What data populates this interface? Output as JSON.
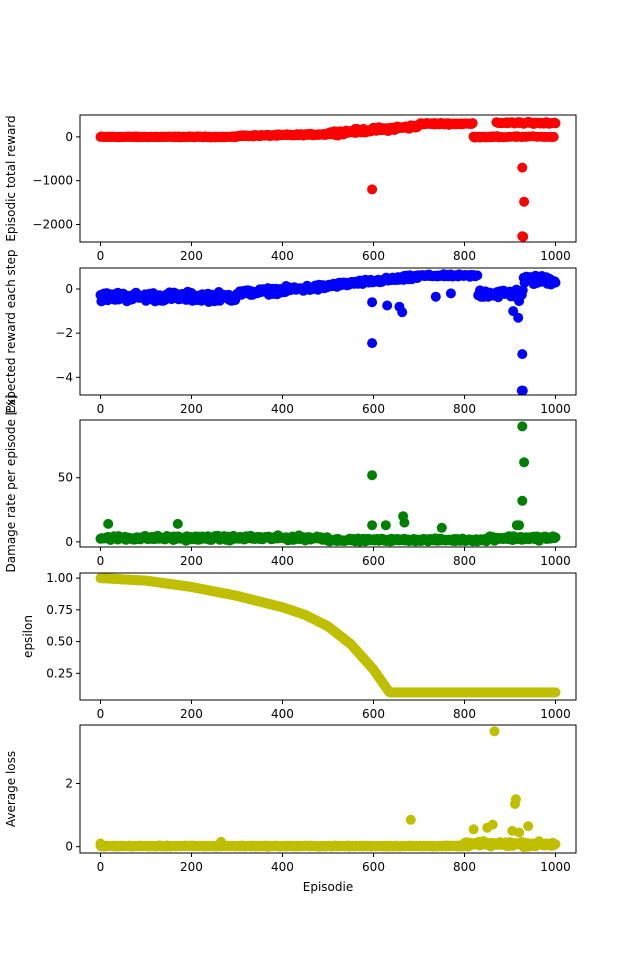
{
  "chart_data": [
    {
      "type": "scatter",
      "ylabel": "Episodic total reward",
      "xlabel": "",
      "color": "#ff0000",
      "xlim": [
        -45,
        1045
      ],
      "ylim": [
        -2400,
        500
      ],
      "xticks": [
        0,
        200,
        400,
        600,
        800,
        1000
      ],
      "yticks": [
        0,
        -1000,
        -2000
      ],
      "outliers": [
        [
          597,
          -1200
        ],
        [
          927,
          -700
        ],
        [
          931,
          -1480
        ],
        [
          927,
          -2270
        ],
        [
          929,
          -2280
        ]
      ]
    },
    {
      "type": "scatter",
      "ylabel": "Expected reward each step",
      "xlabel": "",
      "color": "#0000ff",
      "xlim": [
        -45,
        1045
      ],
      "ylim": [
        -4.8,
        0.95
      ],
      "xticks": [
        0,
        200,
        400,
        600,
        800,
        1000
      ],
      "yticks": [
        0,
        -2,
        -4
      ],
      "outliers": [
        [
          597,
          -2.45
        ],
        [
          927,
          -2.95
        ],
        [
          926,
          -4.6
        ],
        [
          928,
          -4.6
        ],
        [
          597,
          -0.6
        ],
        [
          630,
          -0.75
        ],
        [
          657,
          -0.8
        ],
        [
          663,
          -1.05
        ],
        [
          737,
          -0.35
        ],
        [
          770,
          -0.2
        ],
        [
          907,
          -1.0
        ],
        [
          918,
          -1.3
        ],
        [
          920,
          -0.55
        ]
      ]
    },
    {
      "type": "scatter",
      "ylabel": "Damage rate per episode [%]",
      "xlabel": "",
      "color": "#008000",
      "xlim": [
        -45,
        1045
      ],
      "ylim": [
        -4,
        95
      ],
      "xticks": [
        0,
        200,
        400,
        600,
        800,
        1000
      ],
      "yticks": [
        0,
        50
      ],
      "outliers": [
        [
          927,
          90
        ],
        [
          931,
          62
        ],
        [
          597,
          52
        ],
        [
          927,
          32
        ],
        [
          665,
          20
        ],
        [
          668,
          15
        ],
        [
          597,
          13
        ],
        [
          627,
          13
        ],
        [
          750,
          11
        ],
        [
          915,
          13
        ],
        [
          920,
          13
        ],
        [
          17,
          14
        ],
        [
          170,
          14
        ]
      ]
    },
    {
      "type": "scatter",
      "ylabel": "epsilon",
      "xlabel": "",
      "color": "#bfbf00",
      "xlim": [
        -45,
        1045
      ],
      "ylim": [
        0.04,
        1.04
      ],
      "xticks": [
        0,
        200,
        400,
        600,
        800,
        1000
      ],
      "yticks": [
        0.25,
        0.5,
        0.75,
        1.0
      ],
      "ytick_labels": [
        "0.25",
        "0.50",
        "0.75",
        "1.00"
      ],
      "curve": [
        [
          0,
          1.0
        ],
        [
          100,
          0.98
        ],
        [
          200,
          0.93
        ],
        [
          300,
          0.86
        ],
        [
          400,
          0.77
        ],
        [
          450,
          0.71
        ],
        [
          500,
          0.62
        ],
        [
          550,
          0.48
        ],
        [
          600,
          0.28
        ],
        [
          635,
          0.1
        ],
        [
          1000,
          0.1
        ]
      ],
      "outliers": []
    },
    {
      "type": "scatter",
      "ylabel": "Average loss",
      "xlabel": "Episodie",
      "color": "#bfbf00",
      "xlim": [
        -45,
        1045
      ],
      "ylim": [
        -0.2,
        3.85
      ],
      "xticks": [
        0,
        200,
        400,
        600,
        800,
        1000
      ],
      "yticks": [
        0,
        2
      ],
      "outliers": [
        [
          866,
          3.65
        ],
        [
          913,
          1.5
        ],
        [
          911,
          1.35
        ],
        [
          682,
          0.85
        ],
        [
          862,
          0.7
        ],
        [
          850,
          0.6
        ],
        [
          820,
          0.55
        ],
        [
          940,
          0.65
        ],
        [
          905,
          0.5
        ],
        [
          920,
          0.45
        ],
        [
          265,
          0.15
        ],
        [
          0,
          0.1
        ]
      ]
    }
  ]
}
